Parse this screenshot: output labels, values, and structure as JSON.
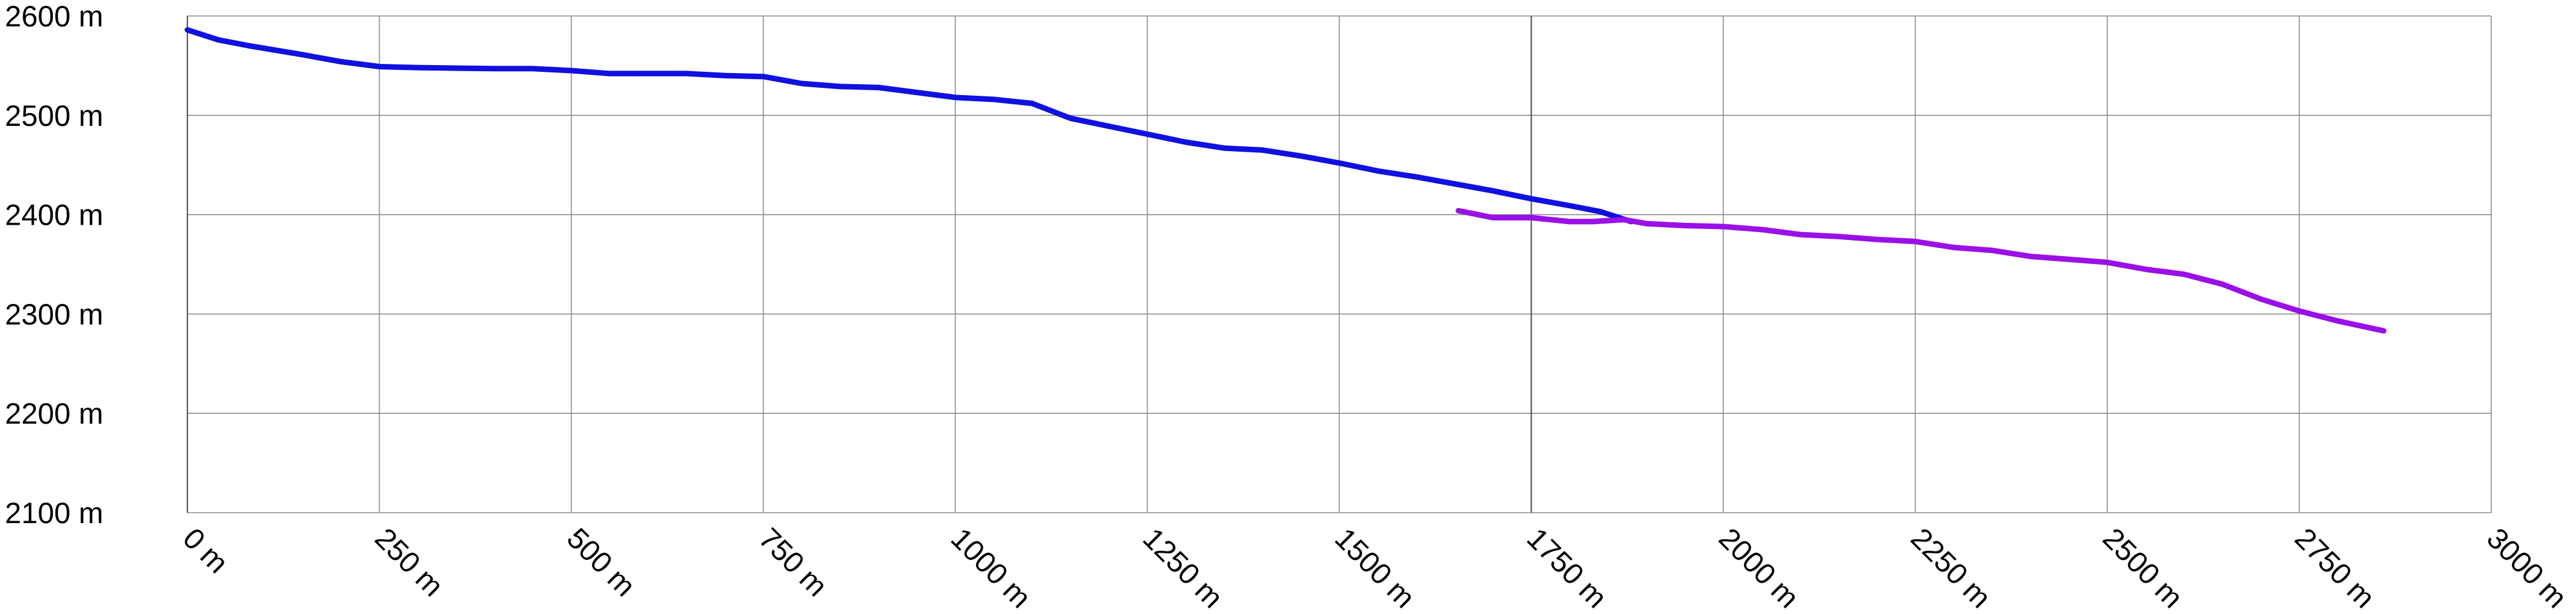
{
  "chart_data": {
    "type": "line",
    "title": "",
    "xlabel": "",
    "ylabel": "",
    "x_unit": "m",
    "y_unit": "m",
    "xlim": [
      0,
      3000
    ],
    "ylim": [
      2100,
      2600
    ],
    "x_ticks": [
      {
        "value": 0,
        "label": "0 m"
      },
      {
        "value": 250,
        "label": "250 m"
      },
      {
        "value": 500,
        "label": "500 m"
      },
      {
        "value": 750,
        "label": "750 m"
      },
      {
        "value": 1000,
        "label": "1000 m"
      },
      {
        "value": 1250,
        "label": "1250 m"
      },
      {
        "value": 1500,
        "label": "1500 m"
      },
      {
        "value": 1750,
        "label": "1750 m"
      },
      {
        "value": 2000,
        "label": "2000 m"
      },
      {
        "value": 2250,
        "label": "2250 m"
      },
      {
        "value": 2500,
        "label": "2500 m"
      },
      {
        "value": 2750,
        "label": "2750 m"
      },
      {
        "value": 3000,
        "label": "3000 m"
      }
    ],
    "y_ticks": [
      {
        "value": 2600,
        "label": "2600 m"
      },
      {
        "value": 2500,
        "label": "2500 m"
      },
      {
        "value": 2400,
        "label": "2400 m"
      },
      {
        "value": 2300,
        "label": "2300 m"
      },
      {
        "value": 2200,
        "label": "2200 m"
      },
      {
        "value": 2100,
        "label": "2100 m"
      }
    ],
    "grid": true,
    "legend": "none",
    "series": [
      {
        "color": "#1010e0",
        "points": [
          [
            0,
            2586
          ],
          [
            40,
            2576
          ],
          [
            80,
            2570
          ],
          [
            150,
            2561
          ],
          [
            200,
            2554
          ],
          [
            250,
            2549
          ],
          [
            300,
            2548
          ],
          [
            400,
            2547
          ],
          [
            450,
            2547
          ],
          [
            500,
            2545
          ],
          [
            550,
            2542
          ],
          [
            650,
            2542
          ],
          [
            700,
            2540
          ],
          [
            750,
            2539
          ],
          [
            800,
            2532
          ],
          [
            850,
            2529
          ],
          [
            900,
            2528
          ],
          [
            1000,
            2518
          ],
          [
            1050,
            2516
          ],
          [
            1100,
            2512
          ],
          [
            1150,
            2497
          ],
          [
            1200,
            2489
          ],
          [
            1250,
            2481
          ],
          [
            1300,
            2473
          ],
          [
            1350,
            2467
          ],
          [
            1400,
            2465
          ],
          [
            1450,
            2459
          ],
          [
            1500,
            2452
          ],
          [
            1550,
            2444
          ],
          [
            1600,
            2438
          ],
          [
            1650,
            2431
          ],
          [
            1700,
            2424
          ],
          [
            1750,
            2416
          ],
          [
            1800,
            2409
          ],
          [
            1840,
            2403
          ],
          [
            1880,
            2393
          ]
        ]
      },
      {
        "color": "#9a10e8",
        "points": [
          [
            1655,
            2404
          ],
          [
            1700,
            2397
          ],
          [
            1750,
            2397
          ],
          [
            1800,
            2393
          ],
          [
            1830,
            2393
          ],
          [
            1870,
            2395
          ],
          [
            1900,
            2391
          ],
          [
            1950,
            2389
          ],
          [
            2000,
            2388
          ],
          [
            2050,
            2385
          ],
          [
            2100,
            2380
          ],
          [
            2150,
            2378
          ],
          [
            2200,
            2375
          ],
          [
            2250,
            2373
          ],
          [
            2300,
            2367
          ],
          [
            2350,
            2364
          ],
          [
            2400,
            2358
          ],
          [
            2450,
            2355
          ],
          [
            2500,
            2352
          ],
          [
            2550,
            2345
          ],
          [
            2600,
            2340
          ],
          [
            2650,
            2330
          ],
          [
            2700,
            2315
          ],
          [
            2750,
            2303
          ],
          [
            2800,
            2293
          ],
          [
            2860,
            2283
          ]
        ]
      }
    ]
  }
}
